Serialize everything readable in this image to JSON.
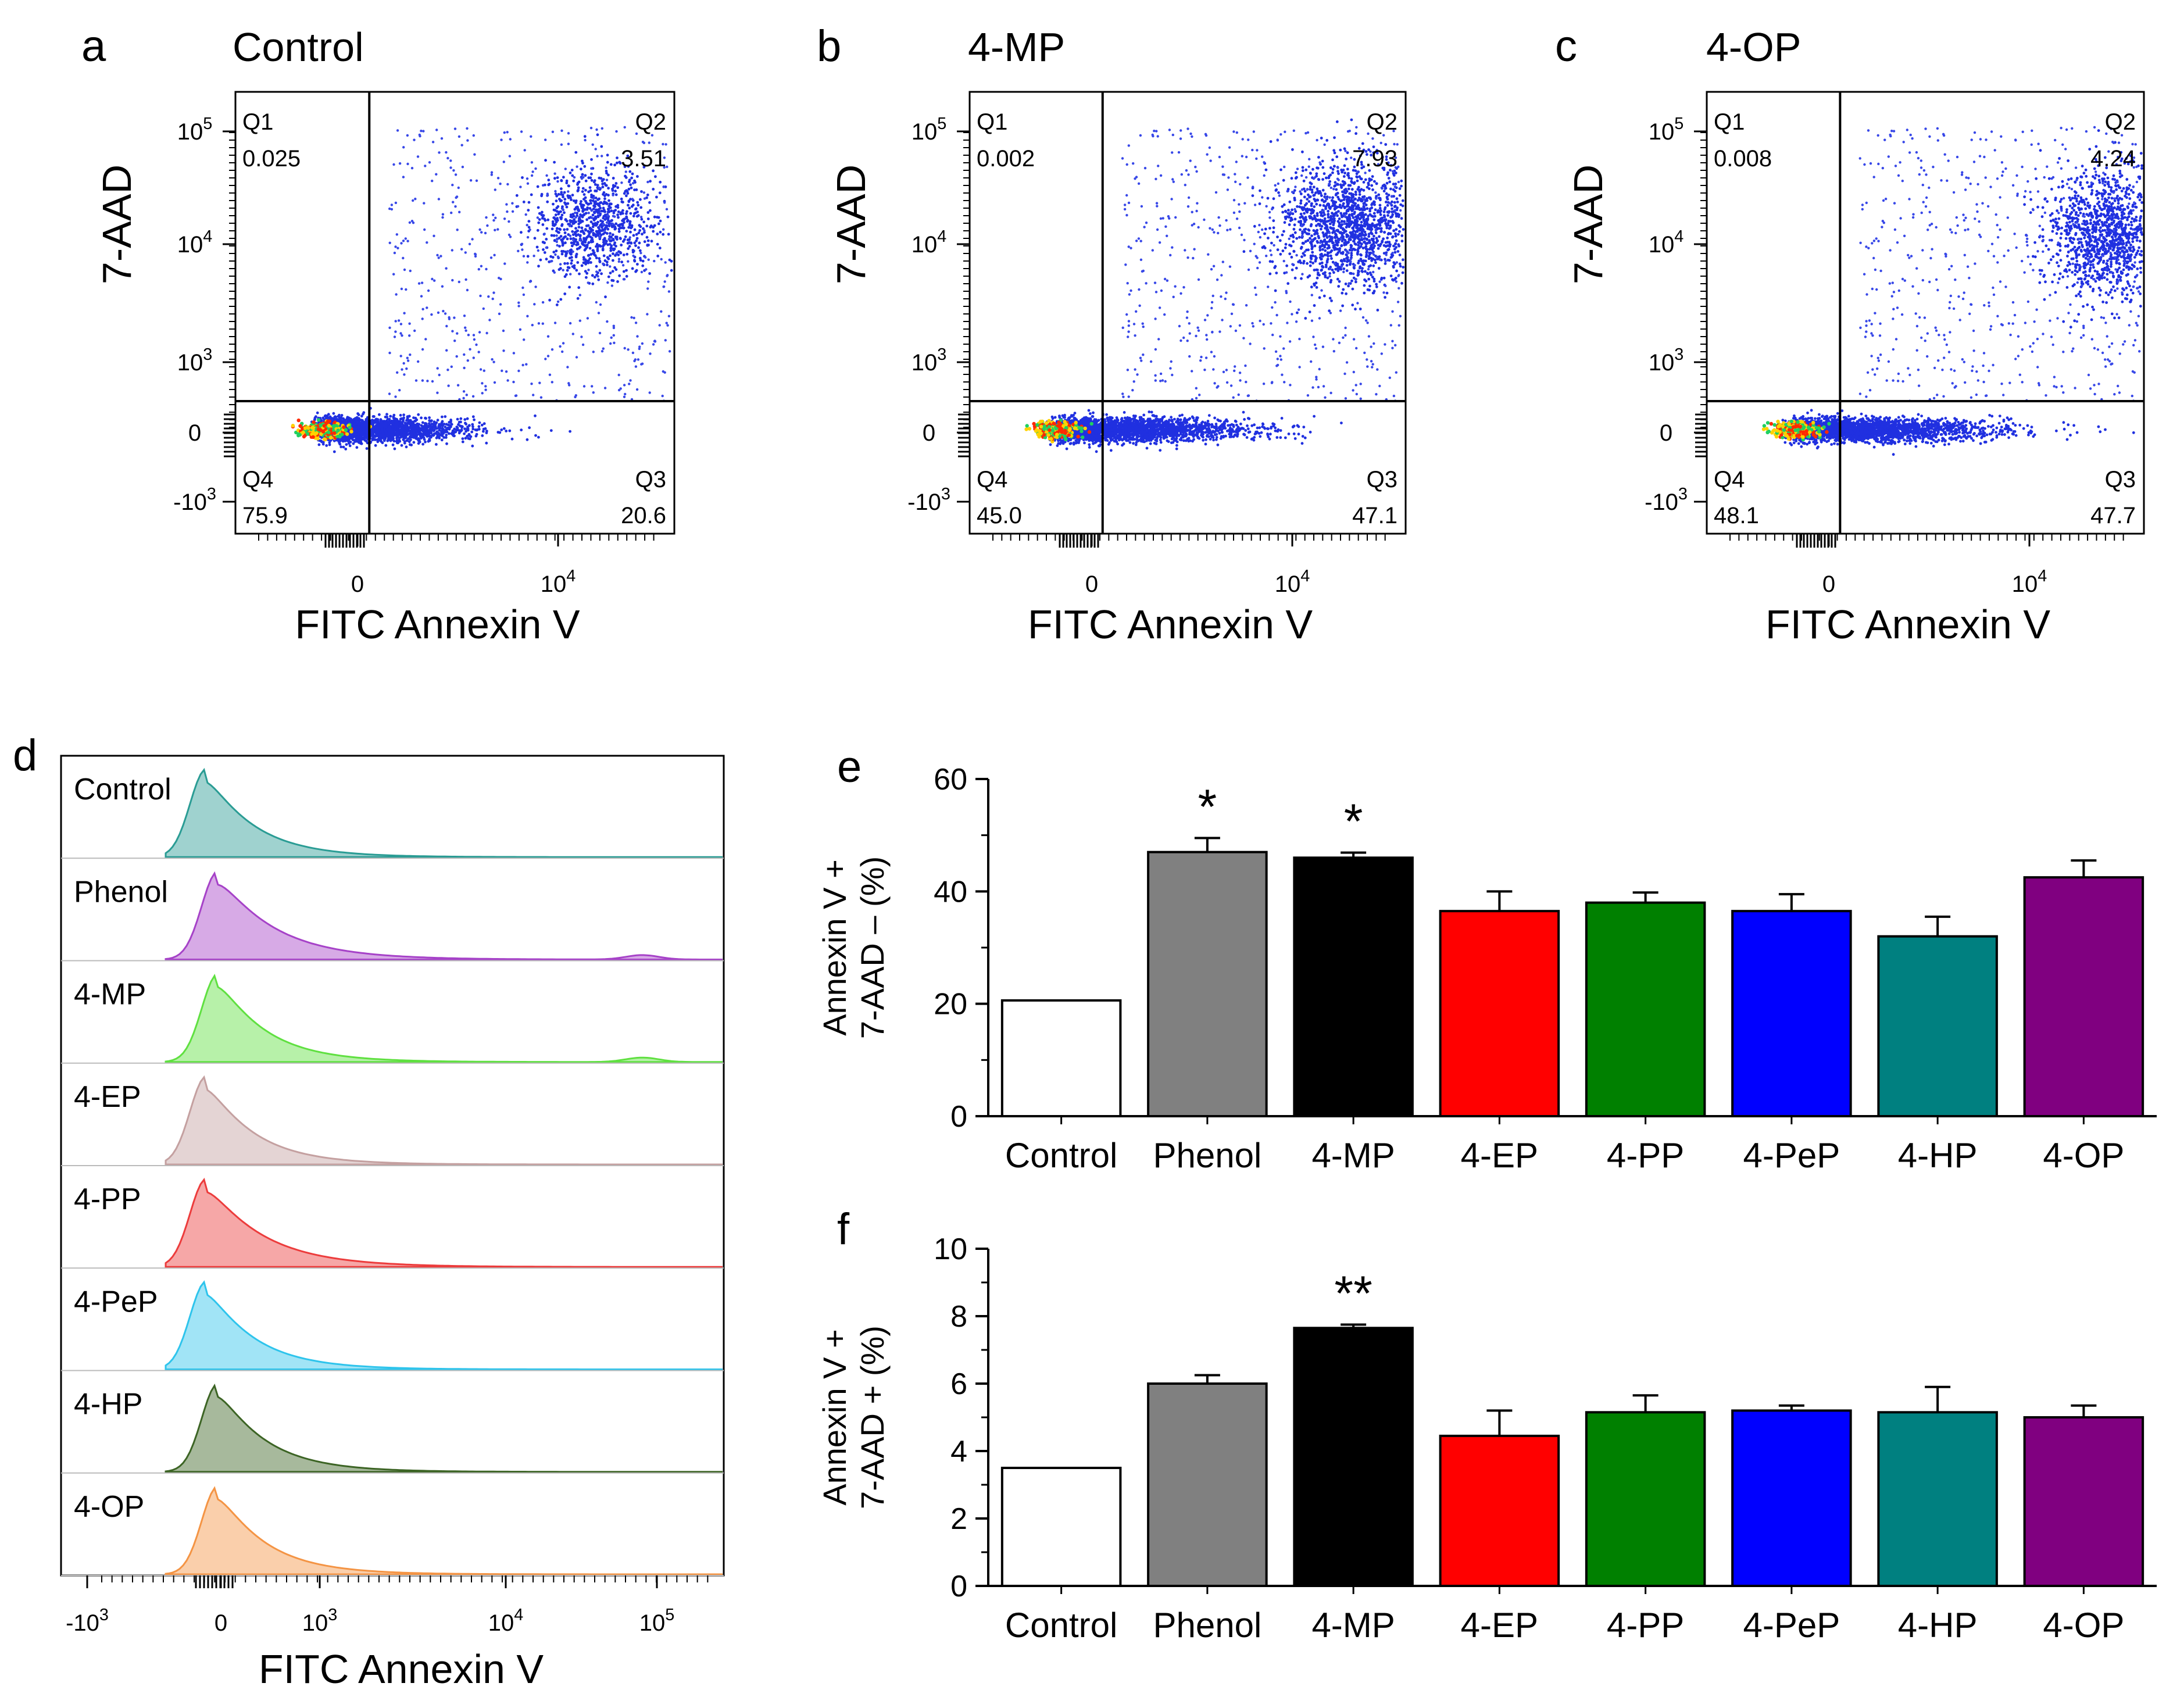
{
  "chart_data": [
    {
      "panel": "a",
      "type": "scatter",
      "title": "Control",
      "xlabel": "FITC Annexin V",
      "ylabel": "7-AAD",
      "yticks": [
        "10^5",
        "10^4",
        "10^3",
        "0",
        "-10^3"
      ],
      "xticks": [
        "0",
        "10^4"
      ],
      "quadrants": {
        "Q1": {
          "label": "Q1",
          "value": "0.025"
        },
        "Q2": {
          "label": "Q2",
          "value": "3.51"
        },
        "Q3": {
          "label": "Q3",
          "value": "20.6"
        },
        "Q4": {
          "label": "Q4",
          "value": "75.9"
        }
      }
    },
    {
      "panel": "b",
      "type": "scatter",
      "title": "4-MP",
      "xlabel": "FITC Annexin V",
      "ylabel": "7-AAD",
      "yticks": [
        "10^5",
        "10^4",
        "10^3",
        "0",
        "-10^3"
      ],
      "xticks": [
        "0",
        "10^4"
      ],
      "quadrants": {
        "Q1": {
          "label": "Q1",
          "value": "0.002"
        },
        "Q2": {
          "label": "Q2",
          "value": "7.93"
        },
        "Q3": {
          "label": "Q3",
          "value": "47.1"
        },
        "Q4": {
          "label": "Q4",
          "value": "45.0"
        }
      }
    },
    {
      "panel": "c",
      "type": "scatter",
      "title": "4-OP",
      "xlabel": "FITC Annexin V",
      "ylabel": "7-AAD",
      "yticks": [
        "10^5",
        "10^4",
        "10^3",
        "0",
        "-10^3"
      ],
      "xticks": [
        "0",
        "10^4"
      ],
      "quadrants": {
        "Q1": {
          "label": "Q1",
          "value": "0.008"
        },
        "Q2": {
          "label": "Q2",
          "value": "4.24"
        },
        "Q3": {
          "label": "Q3",
          "value": "47.7"
        },
        "Q4": {
          "label": "Q4",
          "value": "48.1"
        }
      }
    },
    {
      "panel": "d",
      "type": "area",
      "title": "",
      "xlabel": "FITC Annexin V",
      "xticks": [
        "-10^3",
        "0",
        "10^3",
        "10^4",
        "10^5"
      ],
      "series": [
        {
          "name": "Control",
          "color": "#2a9c94"
        },
        {
          "name": "Phenol",
          "color": "#a642c8"
        },
        {
          "name": "4-MP",
          "color": "#5fe040"
        },
        {
          "name": "4-EP",
          "color": "#c4a0a0"
        },
        {
          "name": "4-PP",
          "color": "#ec3c3c"
        },
        {
          "name": "4-PeP",
          "color": "#2ec4ec"
        },
        {
          "name": "4-HP",
          "color": "#3c6424"
        },
        {
          "name": "4-OP",
          "color": "#f49444"
        }
      ]
    },
    {
      "panel": "e",
      "type": "bar",
      "ylabel_line1": "Annexin V +",
      "ylabel_line2": "7-AAD – (%)",
      "categories": [
        "Control",
        "Phenol",
        "4-MP",
        "4-EP",
        "4-PP",
        "4-PeP",
        "4-HP",
        "4-OP"
      ],
      "values": [
        20.6,
        47.0,
        46.0,
        36.5,
        38.0,
        36.5,
        32.0,
        42.5
      ],
      "errors": [
        0,
        2.5,
        0.9,
        3.5,
        1.8,
        3.0,
        3.5,
        3.0
      ],
      "significance": [
        "",
        "*",
        "*",
        "",
        "",
        "",
        "",
        ""
      ],
      "colors": [
        "#ffffff",
        "#808080",
        "#000000",
        "#ff0000",
        "#008000",
        "#0000ff",
        "#008080",
        "#800080"
      ],
      "ylim": [
        0,
        60
      ],
      "yticks": [
        "0",
        "20",
        "40",
        "60"
      ]
    },
    {
      "panel": "f",
      "type": "bar",
      "ylabel_line1": "Annexin V +",
      "ylabel_line2": "7-AAD + (%)",
      "categories": [
        "Control",
        "Phenol",
        "4-MP",
        "4-EP",
        "4-PP",
        "4-PeP",
        "4-HP",
        "4-OP"
      ],
      "values": [
        3.5,
        6.0,
        7.65,
        4.45,
        5.15,
        5.2,
        5.15,
        5.0
      ],
      "errors": [
        0,
        0.25,
        0.1,
        0.75,
        0.5,
        0.15,
        0.75,
        0.35
      ],
      "significance": [
        "",
        "",
        "**",
        "",
        "",
        "",
        "",
        ""
      ],
      "colors": [
        "#ffffff",
        "#808080",
        "#000000",
        "#ff0000",
        "#008000",
        "#0000ff",
        "#008080",
        "#800080"
      ],
      "ylim": [
        0,
        10
      ],
      "yticks": [
        "0",
        "2",
        "4",
        "6",
        "8",
        "10"
      ]
    }
  ],
  "panel_letters": [
    "a",
    "b",
    "c",
    "d",
    "e",
    "f"
  ]
}
